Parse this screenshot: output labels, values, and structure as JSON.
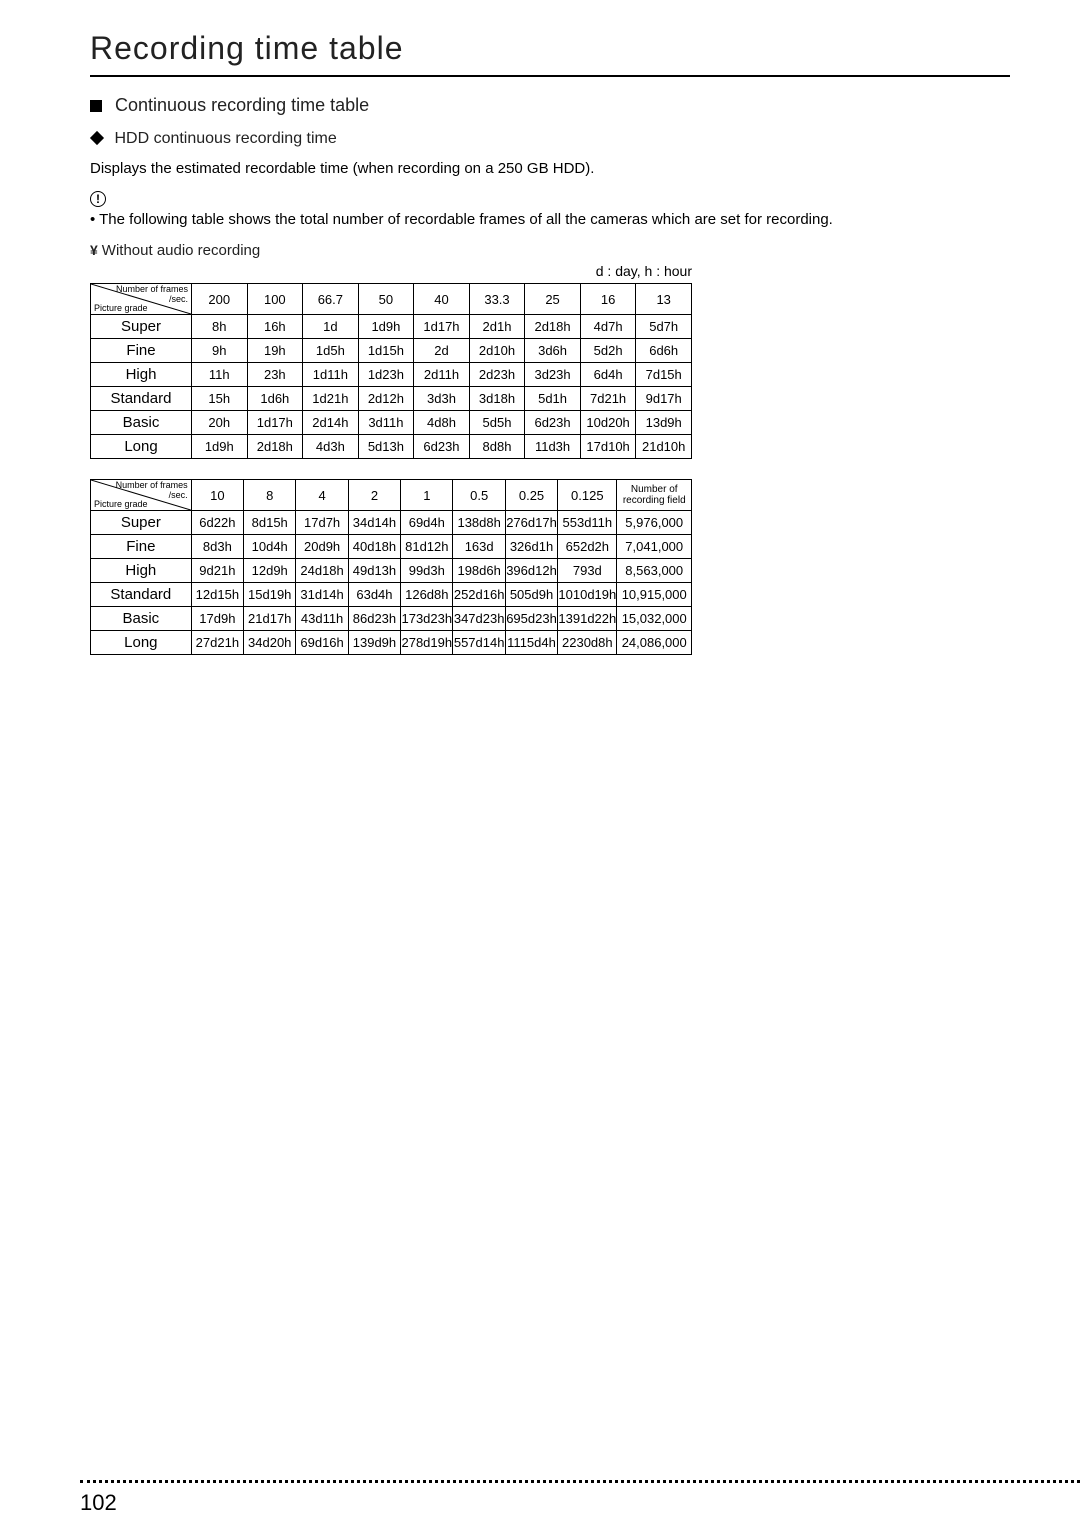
{
  "page": {
    "title": "Recording time table",
    "pageNumber": "102"
  },
  "section": {
    "heading": "Continuous recording time table",
    "subheading": "HDD continuous recording time",
    "desc": "Displays the estimated recordable time (when recording on a 250 GB HDD).",
    "noteIcon": "!",
    "note": "• The following table shows the total number of recordable frames of all the cameras which are set for recording.",
    "subsub": "Without audio recording",
    "legend": "d : day, h : hour"
  },
  "corner": {
    "topLabel": "Number of frames",
    "topLabel2": "/sec.",
    "bottomLabel": "Picture grade"
  },
  "table1": {
    "headers": [
      "200",
      "100",
      "66.7",
      "50",
      "40",
      "33.3",
      "25",
      "16",
      "13"
    ],
    "rows": [
      {
        "label": "Super",
        "cells": [
          "8h",
          "16h",
          "1d",
          "1d9h",
          "1d17h",
          "2d1h",
          "2d18h",
          "4d7h",
          "5d7h"
        ]
      },
      {
        "label": "Fine",
        "cells": [
          "9h",
          "19h",
          "1d5h",
          "1d15h",
          "2d",
          "2d10h",
          "3d6h",
          "5d2h",
          "6d6h"
        ]
      },
      {
        "label": "High",
        "cells": [
          "11h",
          "23h",
          "1d11h",
          "1d23h",
          "2d11h",
          "2d23h",
          "3d23h",
          "6d4h",
          "7d15h"
        ]
      },
      {
        "label": "Standard",
        "cells": [
          "15h",
          "1d6h",
          "1d21h",
          "2d12h",
          "3d3h",
          "3d18h",
          "5d1h",
          "7d21h",
          "9d17h"
        ]
      },
      {
        "label": "Basic",
        "cells": [
          "20h",
          "1d17h",
          "2d14h",
          "3d11h",
          "4d8h",
          "5d5h",
          "6d23h",
          "10d20h",
          "13d9h"
        ]
      },
      {
        "label": "Long",
        "cells": [
          "1d9h",
          "2d18h",
          "4d3h",
          "5d13h",
          "6d23h",
          "8d8h",
          "11d3h",
          "17d10h",
          "21d10h"
        ]
      }
    ]
  },
  "table2": {
    "headers": [
      "10",
      "8",
      "4",
      "2",
      "1",
      "0.5",
      "0.25",
      "0.125"
    ],
    "lastHeader1": "Number of",
    "lastHeader2": "recording field",
    "rows": [
      {
        "label": "Super",
        "cells": [
          "6d22h",
          "8d15h",
          "17d7h",
          "34d14h",
          "69d4h",
          "138d8h",
          "276d17h",
          "553d11h",
          "5,976,000"
        ]
      },
      {
        "label": "Fine",
        "cells": [
          "8d3h",
          "10d4h",
          "20d9h",
          "40d18h",
          "81d12h",
          "163d",
          "326d1h",
          "652d2h",
          "7,041,000"
        ]
      },
      {
        "label": "High",
        "cells": [
          "9d21h",
          "12d9h",
          "24d18h",
          "49d13h",
          "99d3h",
          "198d6h",
          "396d12h",
          "793d",
          "8,563,000"
        ]
      },
      {
        "label": "Standard",
        "cells": [
          "12d15h",
          "15d19h",
          "31d14h",
          "63d4h",
          "126d8h",
          "252d16h",
          "505d9h",
          "1010d19h",
          "10,915,000"
        ]
      },
      {
        "label": "Basic",
        "cells": [
          "17d9h",
          "21d17h",
          "43d11h",
          "86d23h",
          "173d23h",
          "347d23h",
          "695d23h",
          "1391d22h",
          "15,032,000"
        ]
      },
      {
        "label": "Long",
        "cells": [
          "27d21h",
          "34d20h",
          "69d16h",
          "139d9h",
          "278d19h",
          "557d14h",
          "1115d4h",
          "2230d8h",
          "24,086,000"
        ]
      }
    ]
  },
  "style": {
    "table1ColWidths": [
      100,
      55,
      55,
      55,
      55,
      55,
      55,
      55,
      55,
      55
    ],
    "table2ColWidths": [
      100,
      52,
      52,
      52,
      52,
      52,
      52,
      52,
      58,
      74
    ]
  }
}
